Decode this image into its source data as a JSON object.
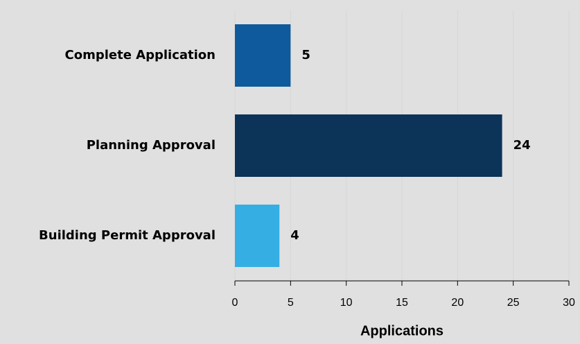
{
  "chart_data": {
    "type": "bar",
    "orientation": "horizontal",
    "categories": [
      "Complete Application",
      "Planning Approval",
      "Building Permit Approval"
    ],
    "values": [
      5,
      24,
      4
    ],
    "colors": [
      "#0f5a9c",
      "#0c3358",
      "#35aee3"
    ],
    "xlabel": "Applications",
    "xlim": [
      0,
      30
    ],
    "xticks": [
      0,
      5,
      10,
      15,
      20,
      25,
      30
    ],
    "grid": true
  }
}
